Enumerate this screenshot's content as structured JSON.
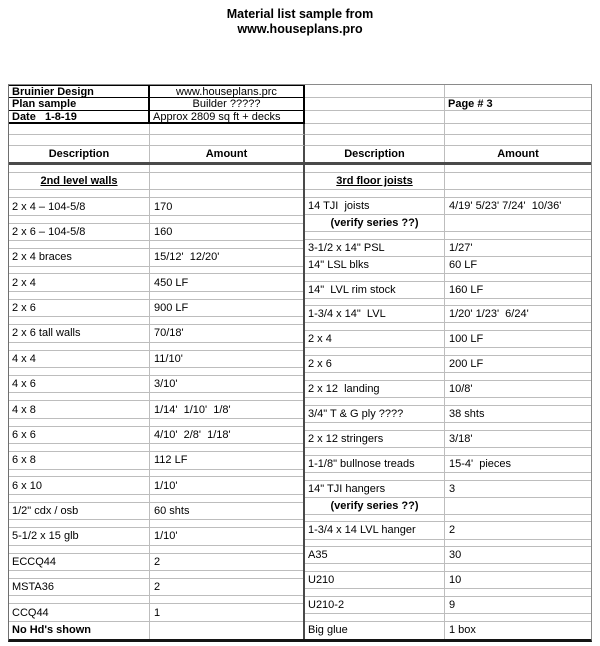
{
  "title": {
    "line1": "Material list sample from",
    "line2": "www.houseplans.pro"
  },
  "header": {
    "company": "Bruinier Design",
    "website": "www.houseplans.prc",
    "plan_label": "Plan sample",
    "builder": "Builder ?????",
    "date": "Date   1-8-19",
    "area": "Approx 2809 sq ft + decks",
    "page": "Page # 3",
    "description_label": "Description",
    "amount_label": "Amount"
  },
  "left_rows": [
    {
      "t": "thin",
      "d": "",
      "a": ""
    },
    {
      "t": "section",
      "d": "2nd level walls",
      "a": ""
    },
    {
      "t": "thin",
      "d": "",
      "a": ""
    },
    {
      "t": "data",
      "d": "2 x 4 – 104-5/8",
      "a": "170"
    },
    {
      "t": "thin",
      "d": "",
      "a": ""
    },
    {
      "t": "data",
      "d": "2 x 6 – 104-5/8",
      "a": "160"
    },
    {
      "t": "thin",
      "d": "",
      "a": ""
    },
    {
      "t": "data",
      "d": "2 x 4 braces",
      "a": "15/12'  12/20'"
    },
    {
      "t": "thin",
      "d": "",
      "a": ""
    },
    {
      "t": "data",
      "d": "2 x 4",
      "a": "450 LF"
    },
    {
      "t": "thin",
      "d": "",
      "a": ""
    },
    {
      "t": "data",
      "d": "2 x 6",
      "a": "900 LF"
    },
    {
      "t": "thin",
      "d": "",
      "a": ""
    },
    {
      "t": "data",
      "d": "2 x 6 tall walls",
      "a": "70/18'"
    },
    {
      "t": "thin",
      "d": "",
      "a": ""
    },
    {
      "t": "data",
      "d": "4 x 4",
      "a": "11/10'"
    },
    {
      "t": "thin",
      "d": "",
      "a": ""
    },
    {
      "t": "data",
      "d": "4 x 6",
      "a": "3/10'"
    },
    {
      "t": "thin",
      "d": "",
      "a": ""
    },
    {
      "t": "data",
      "d": "4 x 8",
      "a": "1/14'  1/10'  1/8'"
    },
    {
      "t": "thin",
      "d": "",
      "a": ""
    },
    {
      "t": "data",
      "d": "6 x 6",
      "a": "4/10'  2/8'  1/18'"
    },
    {
      "t": "thin",
      "d": "",
      "a": ""
    },
    {
      "t": "data",
      "d": "6 x 8",
      "a": "112 LF"
    },
    {
      "t": "thin",
      "d": "",
      "a": ""
    },
    {
      "t": "data",
      "d": "6 x 10",
      "a": "1/10'"
    },
    {
      "t": "thin",
      "d": "",
      "a": ""
    },
    {
      "t": "data",
      "d": "1/2\" cdx / osb",
      "a": "60 shts"
    },
    {
      "t": "thin",
      "d": "",
      "a": ""
    },
    {
      "t": "data",
      "d": "5-1/2 x 15 glb",
      "a": "1/10'"
    },
    {
      "t": "thin",
      "d": "",
      "a": ""
    },
    {
      "t": "data",
      "d": "ECCQ44",
      "a": "2"
    },
    {
      "t": "thin",
      "d": "",
      "a": ""
    },
    {
      "t": "data",
      "d": "MSTA36",
      "a": "2"
    },
    {
      "t": "thin",
      "d": "",
      "a": ""
    },
    {
      "t": "data",
      "d": "CCQ44",
      "a": "1"
    },
    {
      "t": "footer",
      "d": "No Hd's shown",
      "a": ""
    }
  ],
  "right_rows": [
    {
      "t": "thin",
      "d": "",
      "a": ""
    },
    {
      "t": "section",
      "d": "3rd floor joists",
      "a": ""
    },
    {
      "t": "thin",
      "d": "",
      "a": ""
    },
    {
      "t": "data",
      "d": "14 TJI  joists",
      "a": "4/19' 5/23' 7/24'  10/36'"
    },
    {
      "t": "note",
      "d": "(verify series ??)",
      "a": ""
    },
    {
      "t": "thin",
      "d": "",
      "a": ""
    },
    {
      "t": "data",
      "d": "3-1/2 x 14\" PSL",
      "a": "1/27'"
    },
    {
      "t": "data",
      "d": "14\" LSL blks",
      "a": "60 LF"
    },
    {
      "t": "thin",
      "d": "",
      "a": ""
    },
    {
      "t": "data",
      "d": "14\"  LVL rim stock",
      "a": "160 LF"
    },
    {
      "t": "thin",
      "d": "",
      "a": ""
    },
    {
      "t": "data",
      "d": "1-3/4 x 14\"  LVL",
      "a": "1/20' 1/23'  6/24'"
    },
    {
      "t": "thin",
      "d": "",
      "a": ""
    },
    {
      "t": "data",
      "d": "2 x 4",
      "a": "100 LF"
    },
    {
      "t": "thin",
      "d": "",
      "a": ""
    },
    {
      "t": "data",
      "d": "2 x 6",
      "a": "200 LF"
    },
    {
      "t": "thin",
      "d": "",
      "a": ""
    },
    {
      "t": "data",
      "d": "2 x 12  landing",
      "a": "10/8'"
    },
    {
      "t": "thin",
      "d": "",
      "a": ""
    },
    {
      "t": "data",
      "d": "3/4\" T & G ply ????",
      "a": "38 shts"
    },
    {
      "t": "thin",
      "d": "",
      "a": ""
    },
    {
      "t": "data",
      "d": "2 x 12 stringers",
      "a": "3/18'"
    },
    {
      "t": "thin",
      "d": "",
      "a": ""
    },
    {
      "t": "data",
      "d": "1-1/8\" bullnose treads",
      "a": "15-4'  pieces"
    },
    {
      "t": "thin",
      "d": "",
      "a": ""
    },
    {
      "t": "data",
      "d": "14\" TJI hangers",
      "a": "3"
    },
    {
      "t": "note",
      "d": "(verify series ??)",
      "a": ""
    },
    {
      "t": "thin",
      "d": "",
      "a": ""
    },
    {
      "t": "data",
      "d": "1-3/4 x 14 LVL hanger",
      "a": "2"
    },
    {
      "t": "thin",
      "d": "",
      "a": ""
    },
    {
      "t": "data",
      "d": "A35",
      "a": "30"
    },
    {
      "t": "thin",
      "d": "",
      "a": ""
    },
    {
      "t": "data",
      "d": "U210",
      "a": "10"
    },
    {
      "t": "thin",
      "d": "",
      "a": ""
    },
    {
      "t": "data",
      "d": "U210-2",
      "a": "9"
    },
    {
      "t": "thin",
      "d": "",
      "a": ""
    },
    {
      "t": "data",
      "d": "Big glue",
      "a": "1 box"
    }
  ],
  "colors": {
    "grid_line": "#bdbdbd",
    "dark_line": "#4a4a4a",
    "text": "#000000",
    "background": "#ffffff"
  }
}
